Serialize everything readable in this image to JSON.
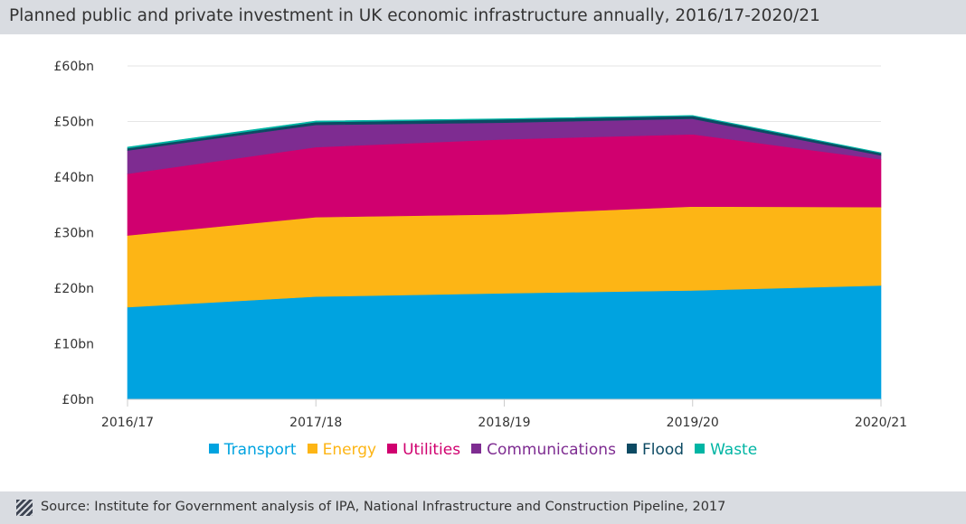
{
  "header": {
    "title": "Planned public and private investment in UK economic infrastructure annually, 2016/17-2020/21"
  },
  "footer": {
    "source": "Source: Institute for Government analysis of IPA, National Infrastructure and Construction Pipeline, 2017",
    "icon": "hatched-square-icon"
  },
  "chart_data": {
    "type": "area",
    "stacked": true,
    "x": [
      "2016/17",
      "2017/18",
      "2018/19",
      "2019/20",
      "2020/21"
    ],
    "ylim": [
      0,
      60
    ],
    "yticks": [
      0,
      10,
      20,
      30,
      40,
      50,
      60
    ],
    "ytick_labels": [
      "£0bn",
      "£10bn",
      "£20bn",
      "£30bn",
      "£40bn",
      "£50bn",
      "£60bn"
    ],
    "grid": true,
    "legend_position": "bottom",
    "series": [
      {
        "name": "Transport",
        "color": "#00a3e0",
        "values": [
          16.6,
          18.5,
          19.1,
          19.6,
          20.5
        ]
      },
      {
        "name": "Energy",
        "color": "#fdb515",
        "values": [
          12.9,
          14.3,
          14.2,
          15.1,
          14.1
        ]
      },
      {
        "name": "Utilities",
        "color": "#d0006f",
        "values": [
          11.1,
          12.6,
          13.5,
          13.0,
          8.6
        ]
      },
      {
        "name": "Communications",
        "color": "#7e2c91",
        "values": [
          4.2,
          4.0,
          3.0,
          2.8,
          0.7
        ]
      },
      {
        "name": "Flood",
        "color": "#0d4a63",
        "values": [
          0.4,
          0.5,
          0.6,
          0.5,
          0.4
        ]
      },
      {
        "name": "Waste",
        "color": "#00b5a4",
        "values": [
          0.2,
          0.2,
          0.1,
          0.1,
          0.1
        ]
      }
    ]
  }
}
